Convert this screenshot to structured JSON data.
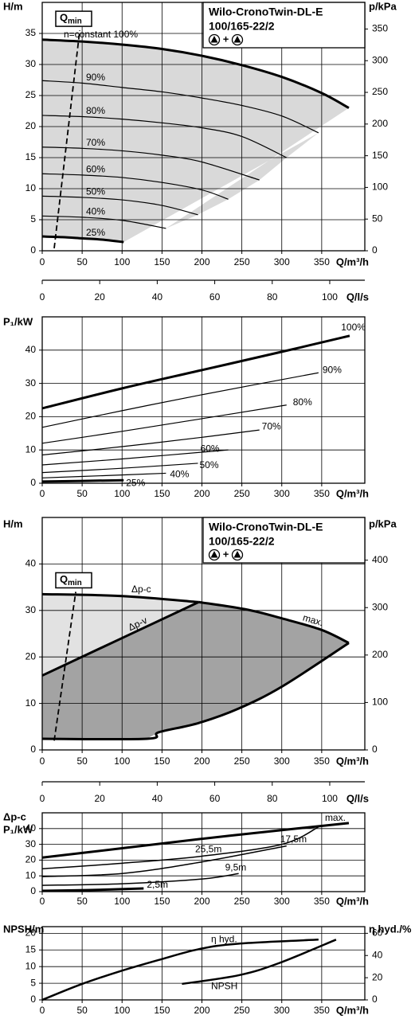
{
  "chart_data": [
    {
      "type": "line",
      "title": "Wilo-CronoTwin-DL-E",
      "subtitle": "100/165-22/2",
      "twin_mode_label": "+",
      "ylabel": [
        "H/m"
      ],
      "y2label": "p/kPa",
      "xlabel": "Q/m³/h",
      "x2label": "Q/l/s",
      "xlim": [
        0,
        404
      ],
      "xticks": [
        0,
        50,
        100,
        150,
        200,
        250,
        300,
        350
      ],
      "x2lim": [
        0,
        112.2
      ],
      "x2ticks": [
        0,
        20,
        40,
        60,
        80,
        100
      ],
      "ylim": [
        0,
        40
      ],
      "yticks": [
        0,
        5,
        10,
        15,
        20,
        25,
        30,
        35
      ],
      "y2lim": [
        0,
        392
      ],
      "y2ticks": [
        0,
        50,
        100,
        150,
        200,
        250,
        300,
        350
      ],
      "grid": true,
      "envelope_color": "#d9d9d9",
      "qmin": {
        "label": "Q",
        "sub": "min",
        "x": [
          15,
          47
        ],
        "values": [
          0.4,
          35.5
        ]
      },
      "series": [
        {
          "name": "n=constant 100%",
          "color": "#000",
          "line_width": 3,
          "x": [
            0,
            50,
            100,
            150,
            200,
            250,
            300,
            350,
            384
          ],
          "values": [
            34,
            33.7,
            33.2,
            32.5,
            31.4,
            29.9,
            28,
            25.4,
            23
          ]
        },
        {
          "name": "90%",
          "color": "#000",
          "line_width": 1.2,
          "x": [
            0,
            50,
            100,
            150,
            200,
            250,
            300,
            346
          ],
          "values": [
            27.4,
            27,
            26.3,
            25.6,
            24.6,
            23.4,
            21.7,
            19
          ]
        },
        {
          "name": "80%",
          "color": "#000",
          "line_width": 1.2,
          "x": [
            0,
            50,
            100,
            150,
            200,
            250,
            306
          ],
          "values": [
            21.8,
            21.6,
            21.2,
            20.6,
            19.8,
            18.4,
            15
          ]
        },
        {
          "name": "70%",
          "color": "#000",
          "line_width": 1.2,
          "x": [
            0,
            50,
            100,
            150,
            200,
            272
          ],
          "values": [
            16.7,
            16.5,
            16.1,
            15.4,
            14.3,
            11.4
          ]
        },
        {
          "name": "60%",
          "color": "#000",
          "line_width": 1.2,
          "x": [
            0,
            50,
            100,
            150,
            200,
            233
          ],
          "values": [
            12.4,
            12.2,
            11.8,
            11,
            9.8,
            8.3
          ]
        },
        {
          "name": "50%",
          "color": "#000",
          "line_width": 1.2,
          "x": [
            0,
            50,
            100,
            150,
            195
          ],
          "values": [
            8.8,
            8.6,
            8.2,
            7.3,
            5.8
          ]
        },
        {
          "name": "40%",
          "color": "#000",
          "line_width": 1.2,
          "x": [
            0,
            50,
            100,
            155
          ],
          "values": [
            5.6,
            5.4,
            4.9,
            3.6
          ]
        },
        {
          "name": "25%",
          "color": "#000",
          "line_width": 3,
          "x": [
            0,
            25,
            50,
            75,
            102
          ],
          "values": [
            2.3,
            2.2,
            2,
            1.8,
            1.4
          ]
        }
      ]
    },
    {
      "type": "line",
      "ylabel": [
        "P₁/kW"
      ],
      "xlabel": "Q/m³/h",
      "xlim": [
        0,
        404
      ],
      "xticks": [
        0,
        50,
        100,
        150,
        200,
        250,
        300,
        350
      ],
      "ylim": [
        0,
        50
      ],
      "yticks": [
        0,
        10,
        20,
        30,
        40
      ],
      "grid": true,
      "series": [
        {
          "name": "100%",
          "color": "#000",
          "line_width": 3,
          "x": [
            0,
            100,
            200,
            300,
            385
          ],
          "values": [
            22.5,
            28.5,
            34,
            39.5,
            44.3
          ]
        },
        {
          "name": "90%",
          "color": "#000",
          "line_width": 1.2,
          "x": [
            0,
            100,
            200,
            346
          ],
          "values": [
            16.8,
            21.8,
            26.6,
            33.2
          ]
        },
        {
          "name": "80%",
          "color": "#000",
          "line_width": 1.2,
          "x": [
            0,
            100,
            200,
            306
          ],
          "values": [
            12,
            15.6,
            19.4,
            23.5
          ]
        },
        {
          "name": "70%",
          "color": "#000",
          "line_width": 1.2,
          "x": [
            0,
            100,
            200,
            272
          ],
          "values": [
            8.5,
            11,
            13.8,
            16
          ]
        },
        {
          "name": "60%",
          "color": "#000",
          "line_width": 1.2,
          "x": [
            0,
            100,
            233
          ],
          "values": [
            5.5,
            7.3,
            10
          ]
        },
        {
          "name": "50%",
          "color": "#000",
          "line_width": 1.2,
          "x": [
            0,
            100,
            195
          ],
          "values": [
            3.2,
            4.5,
            6
          ]
        },
        {
          "name": "40%",
          "color": "#000",
          "line_width": 1.2,
          "x": [
            0,
            80,
            155
          ],
          "values": [
            1.6,
            2.3,
            3
          ]
        },
        {
          "name": "25%",
          "color": "#000",
          "line_width": 3,
          "x": [
            0,
            102
          ],
          "values": [
            0.5,
            0.9
          ]
        }
      ]
    },
    {
      "type": "line",
      "title": "Wilo-CronoTwin-DL-E",
      "subtitle": "100/165-22/2",
      "twin_mode_label": "+",
      "ylabel": [
        "H/m"
      ],
      "y2label": "p/kPa",
      "xlabel": "Q/m³/h",
      "x2label": "Q/l/s",
      "xlim": [
        0,
        404
      ],
      "xticks": [
        0,
        50,
        100,
        150,
        200,
        250,
        300,
        350
      ],
      "x2lim": [
        0,
        112.2
      ],
      "x2ticks": [
        0,
        20,
        40,
        60,
        80,
        100
      ],
      "ylim": [
        0,
        50
      ],
      "yticks": [
        0,
        10,
        20,
        30,
        40
      ],
      "y2lim": [
        0,
        490
      ],
      "y2ticks": [
        0,
        100,
        200,
        300,
        400
      ],
      "grid": true,
      "qmin": {
        "label": "Q",
        "sub": "min",
        "x": [
          15,
          42
        ],
        "values": [
          2,
          34
        ]
      },
      "regions": [
        {
          "color": "#e2e2e2",
          "series": [
            [
              0,
              1
            ],
            [
              1,
              -1
            ]
          ]
        },
        {
          "color": "#a3a3a3",
          "series": [
            [
              1,
              1
            ],
            [
              2,
              1
            ],
            [
              3,
              -1
            ]
          ]
        }
      ],
      "series": [
        {
          "name": "Δp-c",
          "color": "#000",
          "line_width": 3,
          "x": [
            0,
            100,
            196
          ],
          "values": [
            33.5,
            33.1,
            31.8
          ]
        },
        {
          "name": "Δp-v",
          "color": "#000",
          "line_width": 3,
          "x": [
            0,
            196
          ],
          "values": [
            16,
            31.8
          ]
        },
        {
          "name": "max.",
          "color": "#000",
          "line_width": 3,
          "x": [
            196,
            256,
            300,
            350,
            384
          ],
          "values": [
            31.8,
            30.2,
            28.3,
            25.8,
            23
          ]
        },
        {
          "color": "#000",
          "line_width": 3,
          "x": [
            0,
            131,
            146,
            196,
            246,
            301,
            384
          ],
          "values": [
            2.4,
            2.4,
            3.8,
            5.8,
            8.9,
            13.7,
            23
          ]
        }
      ]
    },
    {
      "type": "line",
      "ylabel": [
        "Δp-c",
        "P₁/kW"
      ],
      "xlabel": "Q/m³/h",
      "xlim": [
        0,
        404
      ],
      "xticks": [
        0,
        50,
        100,
        150,
        200,
        250,
        300,
        350
      ],
      "ylim": [
        0,
        50
      ],
      "yticks": [
        0,
        10,
        20,
        30,
        40
      ],
      "grid": true,
      "series": [
        {
          "name": "max.",
          "color": "#000",
          "line_width": 3,
          "x": [
            0,
            100,
            200,
            300,
            384
          ],
          "values": [
            21.6,
            27.5,
            33.5,
            39,
            43.5
          ]
        },
        {
          "name": "25,5m",
          "color": "#000",
          "line_width": 1.5,
          "x": [
            0,
            100,
            200,
            300,
            346
          ],
          "values": [
            14.5,
            18,
            22.5,
            30,
            41
          ]
        },
        {
          "name": "17,5m",
          "color": "#000",
          "line_width": 1.5,
          "x": [
            0,
            100,
            196,
            306
          ],
          "values": [
            9.5,
            11.5,
            18.5,
            29
          ]
        },
        {
          "name": "9,5m",
          "color": "#000",
          "line_width": 1.5,
          "x": [
            0,
            100,
            200,
            246
          ],
          "values": [
            4,
            5,
            8,
            11.5
          ]
        },
        {
          "name": "2,5m",
          "color": "#000",
          "line_width": 3,
          "x": [
            0,
            60,
            127
          ],
          "values": [
            0.5,
            1,
            2
          ]
        }
      ]
    },
    {
      "type": "line",
      "ylabel": [
        "NPSH/m"
      ],
      "y2label": "η hyd./%",
      "xlabel": "Q/m³/h",
      "xlim": [
        0,
        404
      ],
      "xticks": [
        0,
        50,
        100,
        150,
        200,
        250,
        300,
        350
      ],
      "ylim": [
        0,
        22
      ],
      "yticks": [
        0,
        5,
        10,
        15,
        20
      ],
      "y2lim": [
        0,
        66
      ],
      "y2ticks": [
        0,
        20,
        40,
        60
      ],
      "grid": true,
      "series": [
        {
          "name": "η hyd.",
          "axis": "y2",
          "color": "#000",
          "line_width": 2.5,
          "x": [
            0,
            47,
            97,
            146,
            196,
            246,
            346
          ],
          "values": [
            0,
            13.6,
            25.7,
            36,
            45.7,
            50.7,
            54.3
          ]
        },
        {
          "name": "NPSH",
          "color": "#000",
          "line_width": 2.5,
          "x": [
            175,
            246,
            296,
            368
          ],
          "values": [
            4.8,
            7.4,
            11,
            18.1
          ]
        }
      ]
    }
  ]
}
